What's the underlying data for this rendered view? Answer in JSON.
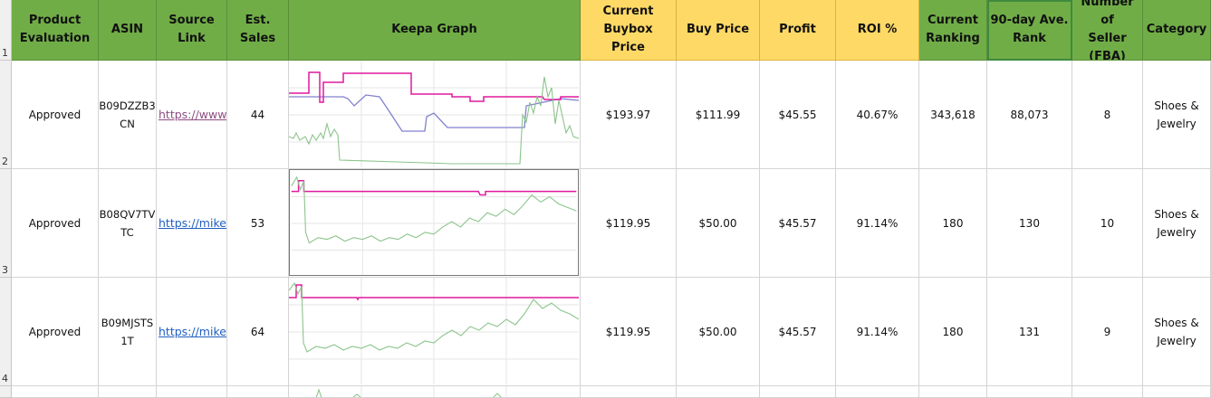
{
  "headers": {
    "product_evaluation": "Product\nEvaluation",
    "asin": "ASIN",
    "source_link": "Source Link",
    "est_sales": "Est. Sales",
    "keepa_graph": "Keepa Graph",
    "current_buybox_price": "Current Buybox\nPrice",
    "buy_price": "Buy Price",
    "profit": "Profit",
    "roi": "ROI %",
    "current_ranking": "Current\nRanking",
    "avg_rank_90": "90-day Ave.\nRank",
    "num_sellers": "Number of\nSeller (FBA)",
    "category": "Category"
  },
  "row_numbers": [
    "1",
    "2",
    "3",
    "4"
  ],
  "rows": [
    {
      "evaluation": "Approved",
      "asin": "B09DZZB3\nCN",
      "link": "https://www",
      "link_visited": true,
      "est_sales": "44",
      "buybox": "$193.97",
      "buy_price": "$111.99",
      "profit": "$45.55",
      "roi": "40.67%",
      "current_rank": "343,618",
      "avg_rank": "88,073",
      "sellers": "8",
      "category": "Shoes &\nJewelry"
    },
    {
      "evaluation": "Approved",
      "asin": "B08QV7TV\nTC",
      "link": "https://mike",
      "link_visited": false,
      "est_sales": "53",
      "buybox": "$119.95",
      "buy_price": "$50.00",
      "profit": "$45.57",
      "roi": "91.14%",
      "current_rank": "180",
      "avg_rank": "130",
      "sellers": "10",
      "category": "Shoes &\nJewelry"
    },
    {
      "evaluation": "Approved",
      "asin": "B09MJSTS\n1T",
      "link": "https://mike",
      "link_visited": false,
      "est_sales": "64",
      "buybox": "$119.95",
      "buy_price": "$50.00",
      "profit": "$45.57",
      "roi": "91.14%",
      "current_rank": "180",
      "avg_rank": "131",
      "sellers": "9",
      "category": "Shoes &\nJewelry"
    }
  ],
  "colors": {
    "header_green": "#70ad47",
    "header_yellow": "#ffd966",
    "price_line": "#e0189e",
    "amazon_line": "#8080d0",
    "rank_line": "#8bc48b"
  }
}
